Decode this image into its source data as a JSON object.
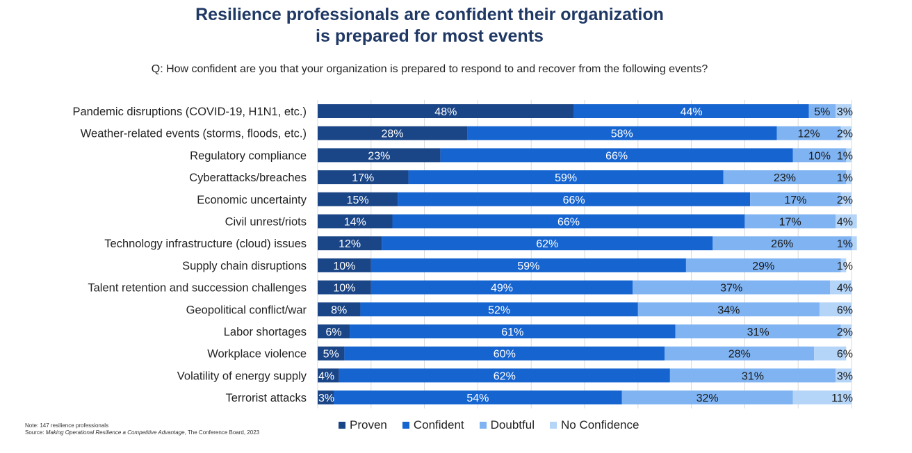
{
  "title_line1": "Resilience professionals are confident their organization",
  "title_line2": "is prepared for most events",
  "question": "Q: How confident are you that your organization is prepared to respond to and recover from the following events?",
  "note": "Note: 147 resilience professionals",
  "source_prefix": "Source: ",
  "source_title": "Making Operational Resilience a Competitive Advantage",
  "source_suffix": ", The Conference Board, 2023",
  "colors": {
    "proven": "#1a4587",
    "confident": "#1664d0",
    "doubtful": "#7fb3f2",
    "no_confidence": "#b4d4f8"
  },
  "chart_data": {
    "type": "bar",
    "orientation": "horizontal",
    "stacked": true,
    "xlim": [
      0,
      100
    ],
    "grid": true,
    "legend_placement": "bottom",
    "categories": [
      "Pandemic disruptions (COVID-19, H1N1, etc.)",
      "Weather-related events (storms, floods, etc.)",
      "Regulatory compliance",
      "Cyberattacks/breaches",
      "Economic uncertainty",
      "Civil unrest/riots",
      "Technology infrastructure (cloud) issues",
      "Supply chain disruptions",
      "Talent retention and succession challenges",
      "Geopolitical conflict/war",
      "Labor shortages",
      "Workplace violence",
      "Volatility of energy supply",
      "Terrorist attacks"
    ],
    "series": [
      {
        "name": "Proven",
        "values": [
          48,
          28,
          23,
          17,
          15,
          14,
          12,
          10,
          10,
          8,
          6,
          5,
          4,
          3
        ]
      },
      {
        "name": "Confident",
        "values": [
          44,
          58,
          66,
          59,
          66,
          66,
          62,
          59,
          49,
          52,
          61,
          60,
          62,
          54
        ]
      },
      {
        "name": "Doubtful",
        "values": [
          5,
          12,
          10,
          23,
          17,
          17,
          26,
          29,
          37,
          34,
          31,
          28,
          31,
          32
        ]
      },
      {
        "name": "No Confidence",
        "values": [
          3,
          2,
          1,
          1,
          2,
          4,
          1,
          1,
          4,
          6,
          2,
          6,
          3,
          11
        ]
      }
    ],
    "value_suffix": "%"
  }
}
